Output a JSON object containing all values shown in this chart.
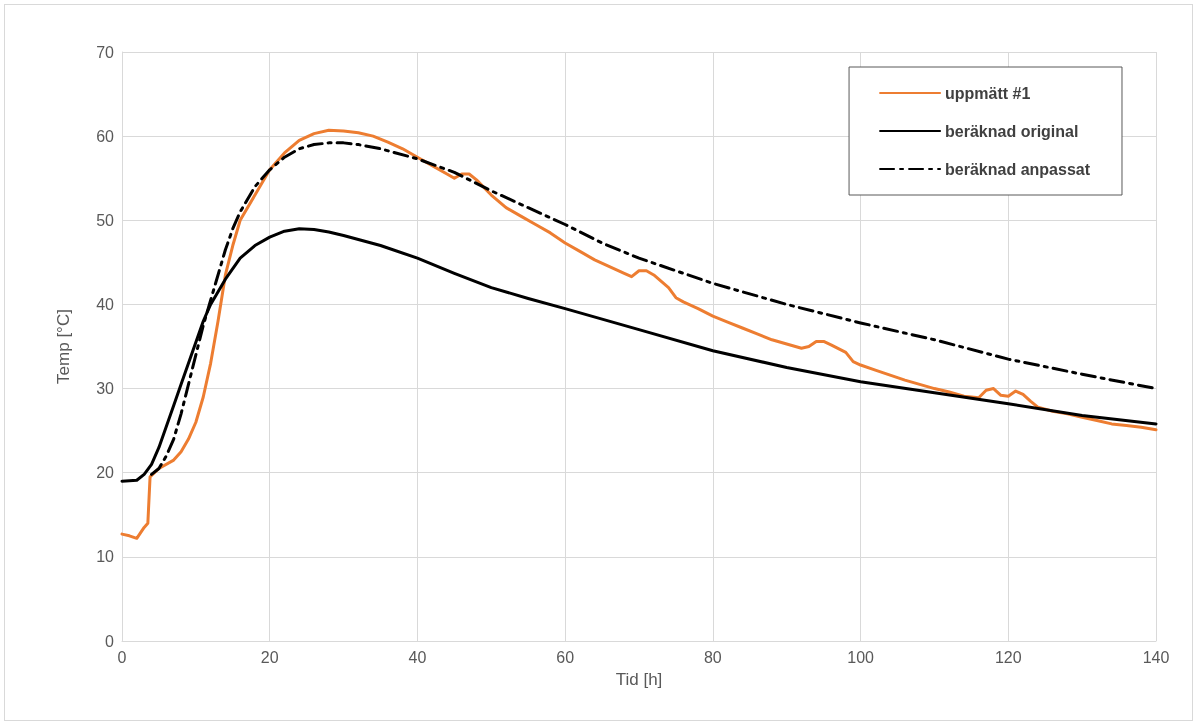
{
  "chart_data": {
    "type": "line",
    "xlabel": "Tid [h]",
    "ylabel": "Temp [°C]",
    "xlim": [
      0,
      140
    ],
    "xticks": [
      0,
      20,
      40,
      60,
      80,
      100,
      120,
      140
    ],
    "ylim": [
      0,
      70
    ],
    "yticks": [
      0,
      10,
      20,
      30,
      40,
      50,
      60,
      70
    ],
    "grid": true,
    "legend": "top right",
    "marker": "none",
    "series": [
      {
        "name": "uppmätt #1",
        "color": "#ed7d31",
        "line_style": "solid",
        "x": [
          0,
          1,
          2,
          3,
          3.5,
          3.8,
          5,
          7,
          8,
          9,
          10,
          11,
          12,
          13,
          14,
          15,
          16,
          18,
          20,
          22,
          24,
          26,
          28,
          30,
          32,
          34,
          36,
          38,
          40,
          42,
          44,
          45,
          46,
          47,
          48,
          50,
          52,
          54,
          56,
          58,
          60,
          62,
          64,
          66,
          68,
          69,
          70,
          71,
          72,
          74,
          75,
          76,
          78,
          80,
          82,
          84,
          86,
          88,
          90,
          92,
          93,
          94,
          95,
          96,
          98,
          99,
          100,
          102,
          104,
          106,
          108,
          110,
          112,
          114,
          116,
          117,
          118,
          119,
          120,
          121,
          122,
          123,
          124,
          126,
          128,
          130,
          132,
          134,
          136,
          138,
          140
        ],
        "values": [
          12.7,
          12.5,
          12.2,
          13.5,
          14,
          19.5,
          20.5,
          21.5,
          22.5,
          24,
          26,
          29,
          33,
          38,
          43.5,
          47,
          50,
          53,
          56,
          58,
          59.5,
          60.3,
          60.7,
          60.6,
          60.4,
          60,
          59.3,
          58.5,
          57.5,
          56.5,
          55.5,
          55,
          55.5,
          55.5,
          54.8,
          53,
          51.5,
          50.5,
          49.5,
          48.5,
          47.3,
          46.3,
          45.3,
          44.5,
          43.7,
          43.3,
          44,
          44,
          43.5,
          42,
          40.8,
          40.3,
          39.5,
          38.6,
          37.9,
          37.2,
          36.5,
          35.8,
          35.3,
          34.8,
          35,
          35.6,
          35.6,
          35.2,
          34.3,
          33.2,
          32.8,
          32.2,
          31.6,
          31,
          30.5,
          30,
          29.6,
          29.1,
          28.9,
          29.8,
          30,
          29.2,
          29.1,
          29.7,
          29.3,
          28.5,
          27.8,
          27.3,
          27,
          26.6,
          26.2,
          25.8,
          25.6,
          25.4,
          25.1
        ]
      },
      {
        "name": "beräknad original",
        "color": "#000000",
        "line_style": "solid",
        "x": [
          0,
          2,
          3,
          4,
          5,
          6,
          7,
          8,
          9,
          10,
          11,
          12,
          14,
          16,
          18,
          20,
          22,
          24,
          26,
          28,
          30,
          35,
          40,
          45,
          50,
          55,
          60,
          70,
          80,
          90,
          100,
          110,
          120,
          130,
          140
        ],
        "values": [
          19,
          19.1,
          19.8,
          21,
          23,
          25.5,
          28,
          30.5,
          33,
          35.5,
          38,
          40,
          43,
          45.5,
          47,
          48,
          48.7,
          49,
          48.9,
          48.6,
          48.2,
          47,
          45.5,
          43.7,
          42,
          40.7,
          39.5,
          37,
          34.5,
          32.5,
          30.8,
          29.5,
          28.2,
          26.8,
          25.8
        ]
      },
      {
        "name": "beräknad anpassat",
        "color": "#000000",
        "line_style": "dashed",
        "x": [
          4,
          5,
          6,
          7,
          8,
          9,
          10,
          11,
          12,
          13,
          14,
          15,
          16,
          18,
          20,
          22,
          24,
          26,
          28,
          30,
          32,
          35,
          40,
          45,
          50,
          55,
          60,
          65,
          70,
          75,
          80,
          90,
          100,
          110,
          120,
          130,
          140
        ],
        "values": [
          19.8,
          20.5,
          22,
          24,
          27,
          30.5,
          34,
          37.5,
          40.5,
          43.5,
          46.5,
          49,
          51,
          54,
          56,
          57.5,
          58.5,
          59,
          59.2,
          59.2,
          59,
          58.5,
          57.3,
          55.7,
          53.5,
          51.5,
          49.5,
          47.3,
          45.5,
          44,
          42.5,
          40,
          37.8,
          35.8,
          33.5,
          31.7,
          30
        ]
      }
    ]
  }
}
